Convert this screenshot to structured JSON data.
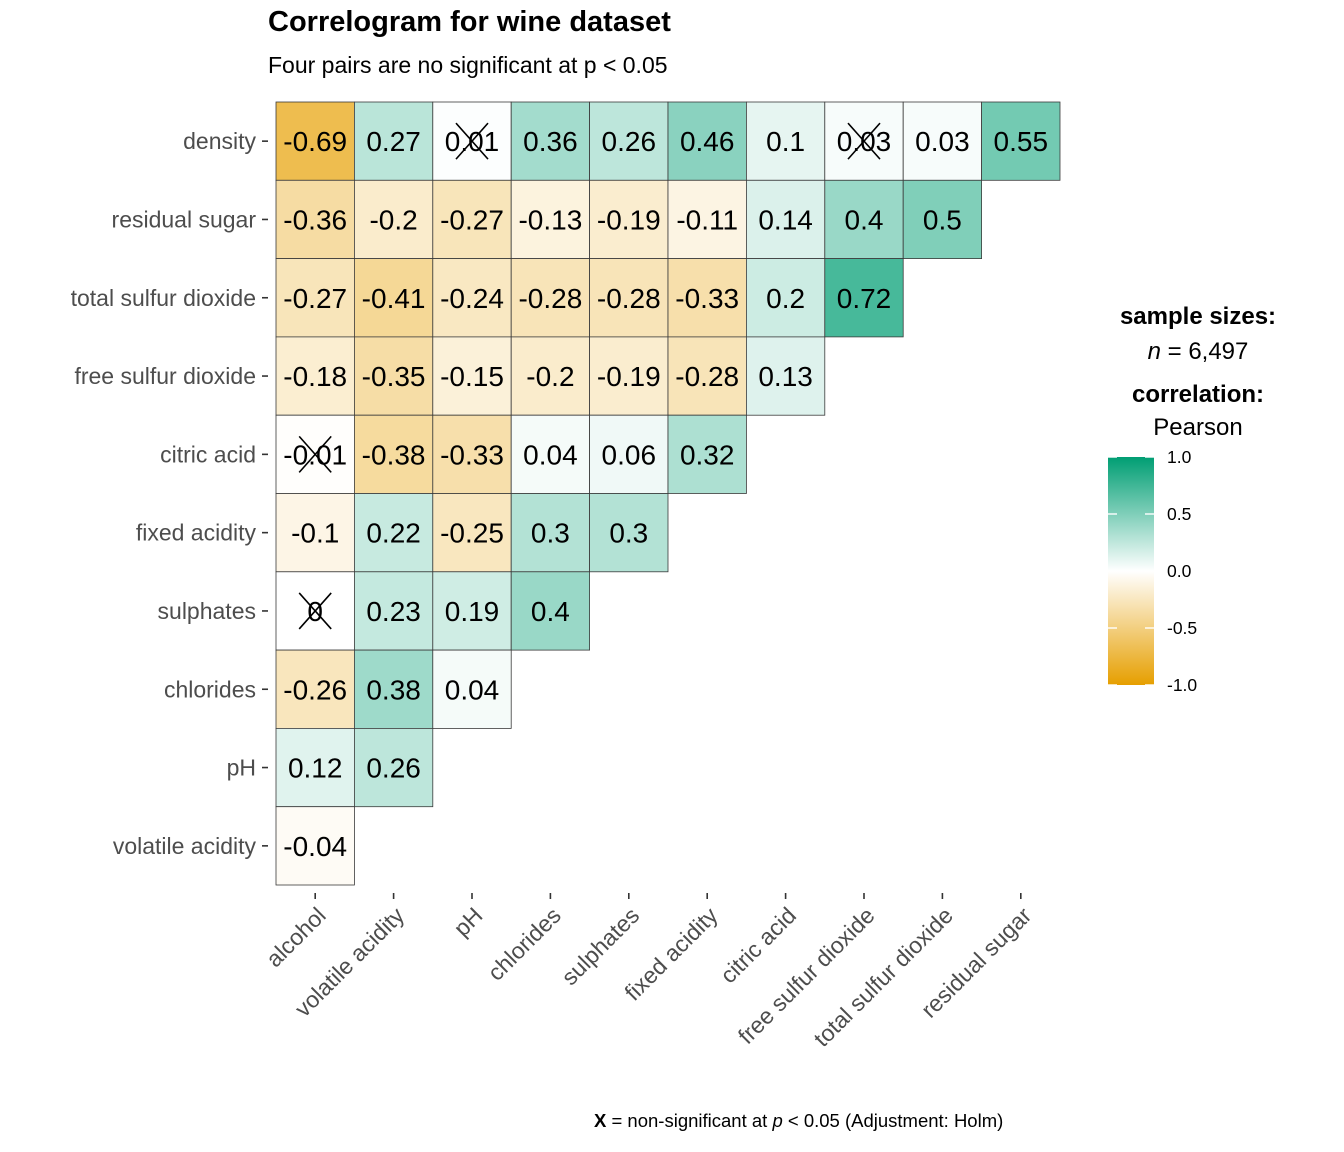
{
  "chart_data": {
    "type": "heatmap",
    "title": "Correlogram for wine dataset",
    "subtitle": "Four pairs are no significant at p < 0.05",
    "x_categories": [
      "alcohol",
      "volatile acidity",
      "pH",
      "chlorides",
      "sulphates",
      "fixed acidity",
      "citric acid",
      "free sulfur dioxide",
      "total sulfur dioxide",
      "residual sugar"
    ],
    "y_categories": [
      "volatile acidity",
      "pH",
      "chlorides",
      "sulphates",
      "fixed acidity",
      "citric acid",
      "free sulfur dioxide",
      "total sulfur dioxide",
      "residual sugar",
      "density"
    ],
    "rows": [
      {
        "y": "density",
        "labels": [
          "-0.69",
          "0.27",
          "0.01",
          "0.36",
          "0.26",
          "0.46",
          "0.1",
          "0.03",
          "0.03",
          "0.55"
        ],
        "values": [
          -0.69,
          0.27,
          0.01,
          0.36,
          0.26,
          0.46,
          0.1,
          0.03,
          0.03,
          0.55
        ],
        "nonsig": [
          false,
          false,
          true,
          false,
          false,
          false,
          false,
          true,
          false,
          false
        ]
      },
      {
        "y": "residual sugar",
        "labels": [
          "-0.36",
          "-0.2",
          "-0.27",
          "-0.13",
          "-0.19",
          "-0.11",
          "0.14",
          "0.4",
          "0.5"
        ],
        "values": [
          -0.36,
          -0.2,
          -0.27,
          -0.13,
          -0.19,
          -0.11,
          0.14,
          0.4,
          0.5
        ],
        "nonsig": [
          false,
          false,
          false,
          false,
          false,
          false,
          false,
          false,
          false
        ]
      },
      {
        "y": "total sulfur dioxide",
        "labels": [
          "-0.27",
          "-0.41",
          "-0.24",
          "-0.28",
          "-0.28",
          "-0.33",
          "0.2",
          "0.72"
        ],
        "values": [
          -0.27,
          -0.41,
          -0.24,
          -0.28,
          -0.28,
          -0.33,
          0.2,
          0.72
        ],
        "nonsig": [
          false,
          false,
          false,
          false,
          false,
          false,
          false,
          false
        ]
      },
      {
        "y": "free sulfur dioxide",
        "labels": [
          "-0.18",
          "-0.35",
          "-0.15",
          "-0.2",
          "-0.19",
          "-0.28",
          "0.13"
        ],
        "values": [
          -0.18,
          -0.35,
          -0.15,
          -0.2,
          -0.19,
          -0.28,
          0.13
        ],
        "nonsig": [
          false,
          false,
          false,
          false,
          false,
          false,
          false
        ]
      },
      {
        "y": "citric acid",
        "labels": [
          "-0.01",
          "-0.38",
          "-0.33",
          "0.04",
          "0.06",
          "0.32"
        ],
        "values": [
          -0.01,
          -0.38,
          -0.33,
          0.04,
          0.06,
          0.32
        ],
        "nonsig": [
          true,
          false,
          false,
          false,
          false,
          false
        ]
      },
      {
        "y": "fixed acidity",
        "labels": [
          "-0.1",
          "0.22",
          "-0.25",
          "0.3",
          "0.3"
        ],
        "values": [
          -0.1,
          0.22,
          -0.25,
          0.3,
          0.3
        ],
        "nonsig": [
          false,
          false,
          false,
          false,
          false
        ]
      },
      {
        "y": "sulphates",
        "labels": [
          "0",
          "0.23",
          "0.19",
          "0.4"
        ],
        "values": [
          0.0,
          0.23,
          0.19,
          0.4
        ],
        "nonsig": [
          true,
          false,
          false,
          false
        ]
      },
      {
        "y": "chlorides",
        "labels": [
          "-0.26",
          "0.38",
          "0.04"
        ],
        "values": [
          -0.26,
          0.38,
          0.04
        ],
        "nonsig": [
          false,
          false,
          false
        ]
      },
      {
        "y": "pH",
        "labels": [
          "0.12",
          "0.26"
        ],
        "values": [
          0.12,
          0.26
        ],
        "nonsig": [
          false,
          false
        ]
      },
      {
        "y": "volatile acidity",
        "labels": [
          "-0.04"
        ],
        "values": [
          -0.04
        ],
        "nonsig": [
          false
        ]
      }
    ],
    "color_scale": {
      "limits": [
        -1.0,
        1.0
      ],
      "low": "#e69f00",
      "mid": "#ffffff",
      "high": "#009e73",
      "ticks": [
        "1.0",
        "0.5",
        "0.0",
        "-0.5",
        "-1.0"
      ]
    },
    "legend_placement": "right",
    "grid": false
  },
  "legend": {
    "sample_sizes_label": "sample sizes:",
    "n_label": "n",
    "n_value": " = 6,497",
    "correlation_label": "correlation:",
    "correlation_method": "Pearson"
  },
  "caption": {
    "symbol": "X",
    "text_before": " = non-significant at ",
    "p_symbol": "p",
    "text_after": " < 0.05 (Adjustment: Holm)"
  }
}
